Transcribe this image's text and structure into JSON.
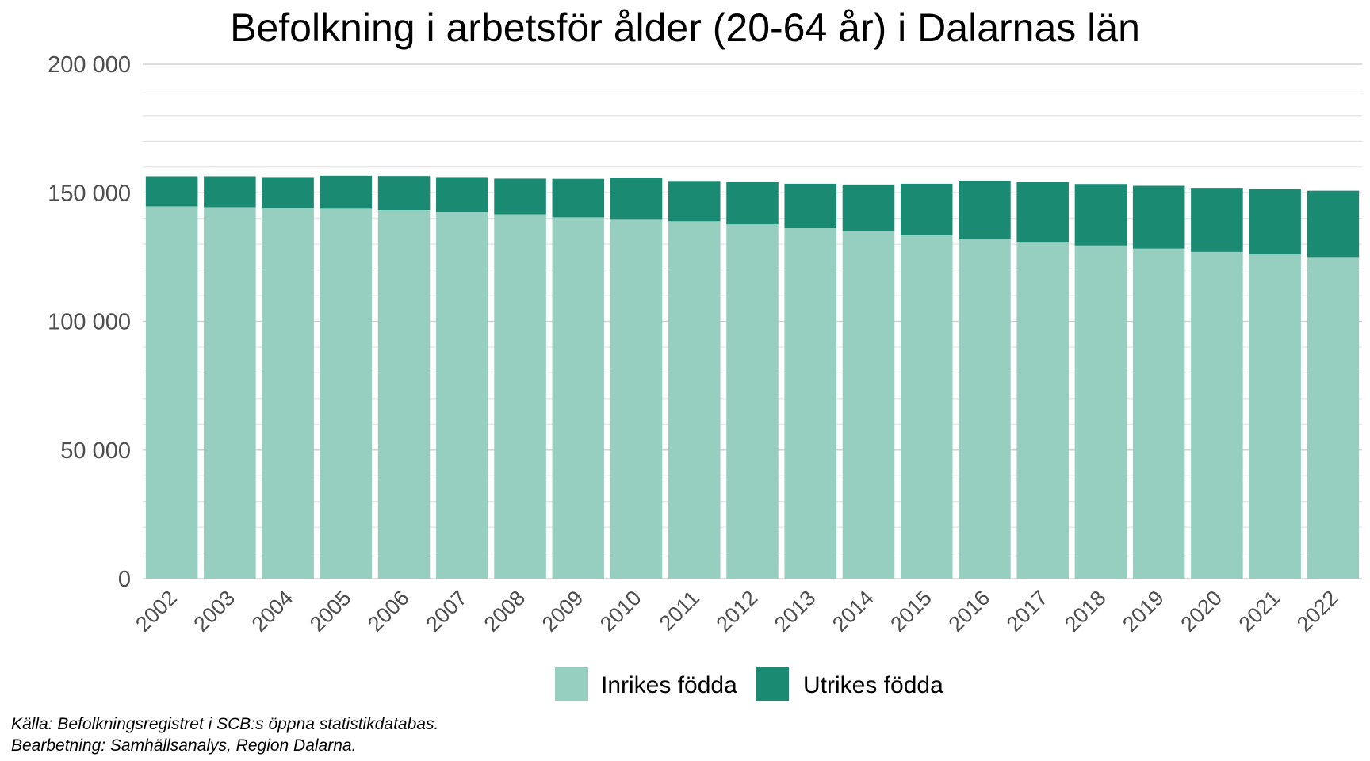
{
  "chart_data": {
    "type": "bar",
    "stacked": true,
    "title": "Befolkning i arbetsför ålder (20-64 år) i Dalarnas län",
    "xlabel": "",
    "ylabel": "",
    "ylim": [
      0,
      200000
    ],
    "yticks": [
      0,
      50000,
      100000,
      150000,
      200000
    ],
    "ytick_labels": [
      "0",
      "50 000",
      "100 000",
      "150 000",
      "200 000"
    ],
    "grid": true,
    "legend_position": "bottom",
    "categories": [
      "2002",
      "2003",
      "2004",
      "2005",
      "2006",
      "2007",
      "2008",
      "2009",
      "2010",
      "2011",
      "2012",
      "2013",
      "2014",
      "2015",
      "2016",
      "2017",
      "2018",
      "2019",
      "2020",
      "2021",
      "2022"
    ],
    "series": [
      {
        "name": "Inrikes födda",
        "color": "#96CEC0",
        "values": [
          144700,
          144400,
          144000,
          143800,
          143300,
          142500,
          141600,
          140400,
          139800,
          138900,
          137700,
          136500,
          135100,
          133500,
          132100,
          130900,
          129500,
          128300,
          127000,
          126000,
          125000
        ]
      },
      {
        "name": "Utrikes födda",
        "color": "#1B8A73",
        "values": [
          11700,
          12000,
          12100,
          12800,
          13200,
          13600,
          13900,
          15000,
          16100,
          15700,
          16700,
          17000,
          18100,
          20000,
          22600,
          23200,
          23900,
          24400,
          24900,
          25400,
          25800
        ]
      }
    ],
    "caption_lines": [
      "Källa: Befolkningsregistret i SCB:s öppna statistikdatabas.",
      "Bearbetning: Samhällsanalys, Region Dalarna."
    ]
  }
}
